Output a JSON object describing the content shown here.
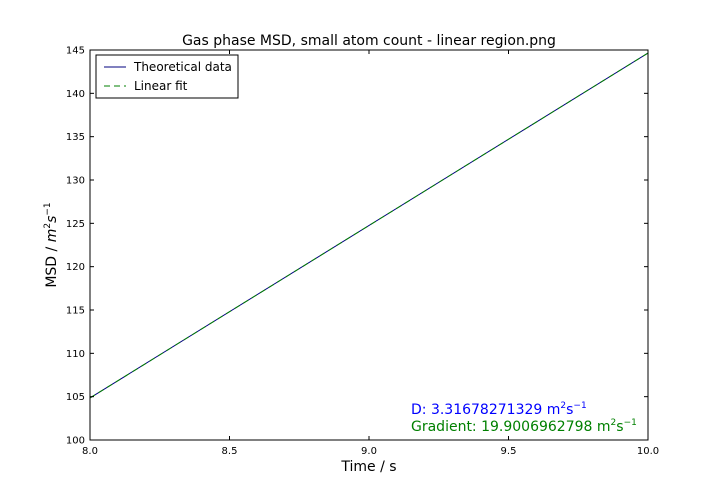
{
  "chart_data": {
    "type": "line",
    "title": "Gas phase MSD, small atom count - linear region.png",
    "xlabel": "Time / s",
    "ylabel_main": "MSD / ",
    "ylabel_units": {
      "m": "m",
      "m_exp": "2",
      "s": "s",
      "s_exp": "−1"
    },
    "xlim": [
      8.0,
      10.0
    ],
    "ylim": [
      100,
      145
    ],
    "xticks": [
      8.0,
      8.5,
      9.0,
      9.5,
      10.0
    ],
    "xtick_labels": [
      "8.0",
      "8.5",
      "9.0",
      "9.5",
      "10.0"
    ],
    "yticks": [
      100,
      105,
      110,
      115,
      120,
      125,
      130,
      135,
      140,
      145
    ],
    "ytick_labels": [
      "100",
      "105",
      "110",
      "115",
      "120",
      "125",
      "130",
      "135",
      "140",
      "145"
    ],
    "grid": false,
    "legend_position": "top-left",
    "series": [
      {
        "name": "Theoretical data",
        "style": "solid",
        "color": "#00007f",
        "x": [
          8.0,
          10.0
        ],
        "y": [
          104.85,
          144.65
        ]
      },
      {
        "name": "Linear fit",
        "style": "dashed",
        "color": "#007f00",
        "x": [
          8.0,
          10.0
        ],
        "y": [
          104.85,
          144.65
        ]
      }
    ],
    "annotations": [
      {
        "prefix": "D: 3.31678271329 m",
        "exp1": "2",
        "mid": "s",
        "exp2": "−1",
        "color": "#0000ff"
      },
      {
        "prefix": "Gradient: 19.9006962798 m",
        "exp1": "2",
        "mid": "s",
        "exp2": "−1",
        "color": "#008000"
      }
    ]
  }
}
